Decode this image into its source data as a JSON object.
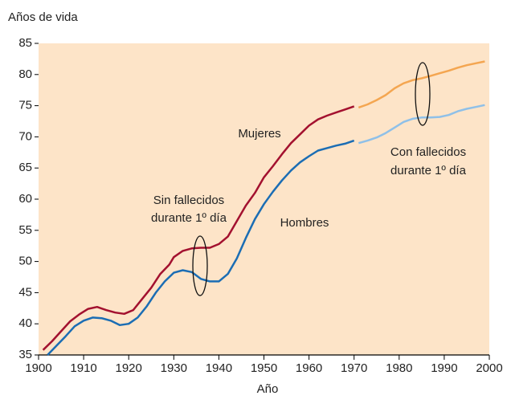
{
  "chart_data": {
    "type": "line",
    "y_label": "Años de vida",
    "x_label": "Año",
    "xlim": [
      1900,
      2000
    ],
    "xticks": [
      1900,
      1910,
      1920,
      1930,
      1940,
      1950,
      1960,
      1970,
      1980,
      1990,
      2000
    ],
    "ylim": [
      35,
      85
    ],
    "yticks": [
      35,
      40,
      45,
      50,
      55,
      60,
      65,
      70,
      75,
      80,
      85
    ],
    "background": "#fde4c8",
    "annotations": [
      "Mujeres",
      "Hombres",
      "Sin fallecidos",
      "durante 1º día",
      "Con fallecidos",
      "durante 1º día"
    ],
    "series": [
      {
        "name": "Mujeres",
        "color": "#a3112f",
        "x": [
          1901,
          1903,
          1905,
          1907,
          1909,
          1911,
          1913,
          1915,
          1917,
          1919,
          1921,
          1923,
          1925,
          1927,
          1929,
          1930,
          1932,
          1934,
          1936,
          1938,
          1940,
          1942,
          1944,
          1946,
          1948,
          1950,
          1952,
          1954,
          1956,
          1958,
          1960,
          1962,
          1964,
          1966,
          1968,
          1970
        ],
        "values": [
          35.8,
          37.2,
          38.8,
          40.4,
          41.5,
          42.4,
          42.7,
          42.2,
          41.8,
          41.6,
          42.2,
          44,
          45.8,
          48,
          49.5,
          50.7,
          51.7,
          52.1,
          52.2,
          52.2,
          52.8,
          54,
          56.5,
          59,
          61,
          63.5,
          65.3,
          67.2,
          69,
          70.4,
          71.8,
          72.8,
          73.4,
          73.9,
          74.4,
          74.9
        ]
      },
      {
        "name": "Hombres",
        "color": "#1b6db4",
        "x": [
          1902,
          1904,
          1906,
          1908,
          1910,
          1912,
          1914,
          1916,
          1918,
          1920,
          1922,
          1924,
          1926,
          1928,
          1930,
          1932,
          1934,
          1936,
          1938,
          1940,
          1942,
          1944,
          1946,
          1948,
          1950,
          1952,
          1954,
          1956,
          1958,
          1960,
          1962,
          1964,
          1966,
          1968,
          1970
        ],
        "values": [
          35,
          36.5,
          38,
          39.6,
          40.5,
          41,
          40.9,
          40.5,
          39.8,
          40,
          41,
          42.8,
          45,
          46.8,
          48.2,
          48.6,
          48.3,
          47.2,
          46.8,
          46.8,
          48,
          50.5,
          53.8,
          56.8,
          59.2,
          61.2,
          63,
          64.6,
          65.9,
          66.9,
          67.8,
          68.2,
          68.6,
          68.9,
          69.4
        ]
      },
      {
        "name": "Mujeres con fallecidos",
        "color": "#f4a651",
        "x": [
          1971,
          1973,
          1975,
          1977,
          1979,
          1981,
          1983,
          1985,
          1987,
          1989,
          1991,
          1993,
          1995,
          1997,
          1999
        ],
        "values": [
          74.7,
          75.2,
          75.9,
          76.7,
          77.8,
          78.6,
          79.1,
          79.4,
          79.8,
          80.2,
          80.6,
          81.1,
          81.5,
          81.8,
          82.1
        ]
      },
      {
        "name": "Hombres con fallecidos",
        "color": "#8fc0e8",
        "x": [
          1971,
          1973,
          1975,
          1977,
          1979,
          1981,
          1983,
          1985,
          1987,
          1989,
          1991,
          1993,
          1995,
          1997,
          1999
        ],
        "values": [
          69,
          69.4,
          69.9,
          70.6,
          71.5,
          72.4,
          72.9,
          73.1,
          73.1,
          73.2,
          73.5,
          74.1,
          74.5,
          74.8,
          75.1
        ]
      }
    ]
  }
}
